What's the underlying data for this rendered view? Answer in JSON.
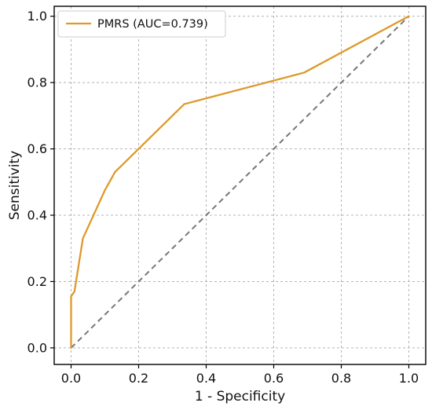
{
  "chart_data": {
    "type": "line",
    "title": "",
    "xlabel": "1 - Specificity",
    "ylabel": "Sensitivity",
    "xlim": [
      -0.05,
      1.05
    ],
    "ylim": [
      -0.05,
      1.03
    ],
    "xticks": [
      0.0,
      0.2,
      0.4,
      0.6,
      0.8,
      1.0
    ],
    "yticks": [
      0.0,
      0.2,
      0.4,
      0.6,
      0.8,
      1.0
    ],
    "xtick_labels": [
      "0.0",
      "0.2",
      "0.4",
      "0.6",
      "0.8",
      "1.0"
    ],
    "ytick_labels": [
      "0.0",
      "0.2",
      "0.4",
      "0.6",
      "0.8",
      "1.0"
    ],
    "grid": true,
    "legend": {
      "placement": "top-left",
      "entries": [
        "PMRS (AUC=0.739)"
      ]
    },
    "series": [
      {
        "name": "PMRS (AUC=0.739)",
        "color": "#DD9A2B",
        "x": [
          0.0,
          0.0,
          0.01,
          0.035,
          0.1,
          0.13,
          0.335,
          0.69,
          1.0
        ],
        "y": [
          0.0,
          0.155,
          0.17,
          0.33,
          0.475,
          0.53,
          0.735,
          0.83,
          1.0
        ]
      }
    ],
    "reference_line": {
      "color": "#777777",
      "x": [
        0.0,
        1.0
      ],
      "y": [
        0.0,
        1.0
      ]
    }
  }
}
